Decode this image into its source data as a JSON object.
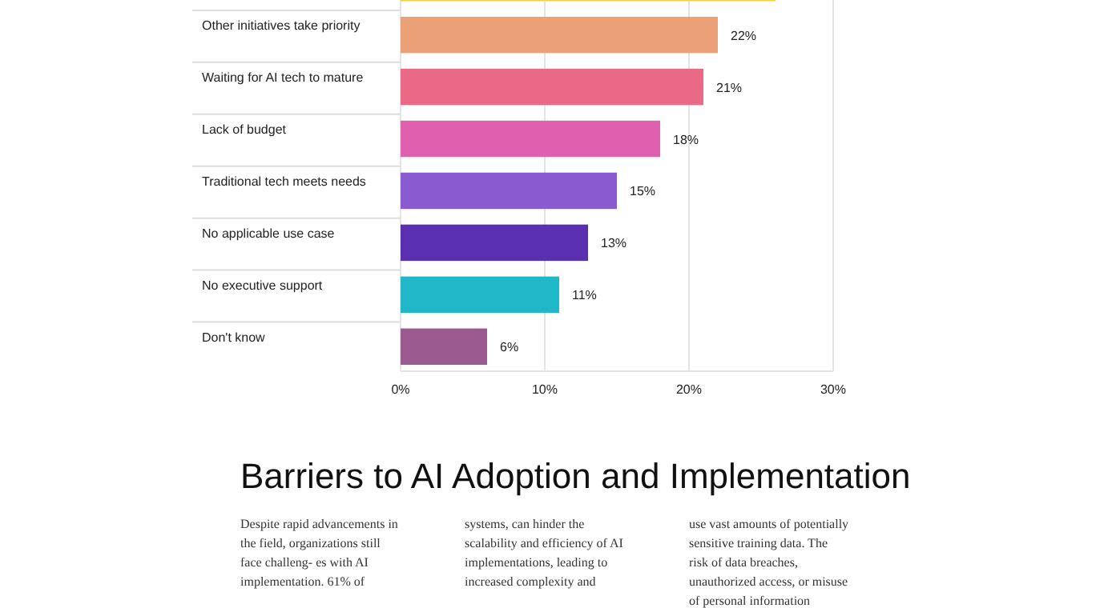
{
  "chart_data": {
    "type": "bar",
    "orientation": "horizontal",
    "title": "Barriers to AI Adoption and Implementation",
    "categories": [
      null,
      "Other initiatives take priority",
      "Waiting for AI tech to mature",
      "Lack of budget",
      "Traditional tech meets needs",
      "No applicable use case",
      "No executive support",
      "Don't know"
    ],
    "values": [
      26,
      22,
      21,
      18,
      15,
      13,
      11,
      6
    ],
    "colors": [
      "#f0d040",
      "#eba078",
      "#ea6a86",
      "#e060b0",
      "#8a5ad0",
      "#5a30b0",
      "#20b8c8",
      "#9a5a90"
    ],
    "xlim": [
      0,
      30
    ],
    "xticks": [
      {
        "value": 0,
        "label": "0%"
      },
      {
        "value": 10,
        "label": "10%"
      },
      {
        "value": 20,
        "label": "20%"
      },
      {
        "value": 30,
        "label": "30%"
      }
    ],
    "grid": "x",
    "value_labels": [
      null,
      "22%",
      "21%",
      "18%",
      "15%",
      "13%",
      "11%",
      "6%"
    ],
    "annotations": [
      "Despite rapid advancements in the field, organizations still face challeng- es with AI implementation. 61% of",
      "systems, can hinder the scalability and efficiency of AI implementations, leading to increased complexity and",
      "use vast amounts of potentially sensitive training data. The risk of data breaches, unauthorized access, or misuse of personal information"
    ]
  }
}
